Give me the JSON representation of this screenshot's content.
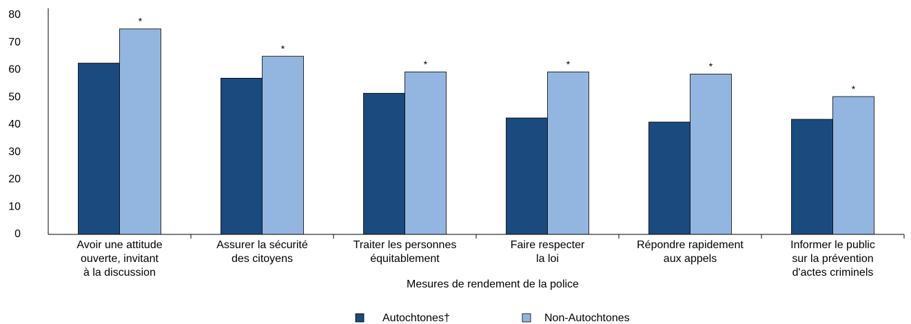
{
  "chart_data": {
    "type": "bar",
    "categories": [
      [
        "Avoir une attitude",
        "ouverte, invitant",
        "à la discussion"
      ],
      [
        "Assurer la sécurité",
        "des citoyens"
      ],
      [
        "Traiter les personnes",
        "équitablement"
      ],
      [
        "Faire respecter",
        "la loi"
      ],
      [
        "Répondre rapidement",
        "aux appels"
      ],
      [
        "Informer le public",
        "sur la prévention",
        "d'actes criminels"
      ]
    ],
    "series": [
      {
        "name": "Autochtones†",
        "color": "#1b4a7e",
        "values": [
          62.5,
          57,
          51.5,
          42.5,
          41,
          42
        ]
      },
      {
        "name": "Non-Autochtones",
        "color": "#93b6e0",
        "values": [
          75,
          65,
          59.3,
          59.3,
          58.5,
          50.3
        ],
        "annotations": [
          "*",
          "*",
          "*",
          "*",
          "*",
          "*"
        ]
      }
    ],
    "x_label": "Mesures de rendement de la police",
    "ylim": [
      0,
      80
    ],
    "yticks": [
      0,
      10,
      20,
      30,
      40,
      50,
      60,
      70,
      80
    ],
    "grid": false,
    "legend": "bottom"
  }
}
